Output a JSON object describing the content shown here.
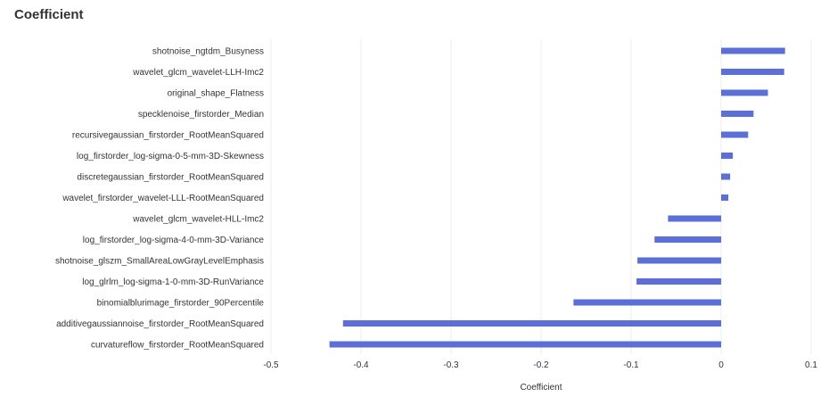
{
  "header": {
    "title": "Coefficient"
  },
  "chart_data": {
    "type": "bar",
    "orientation": "horizontal",
    "title": "Coefficient",
    "xlabel": "Coefficient",
    "ylabel": "",
    "xlim": [
      -0.5,
      0.1
    ],
    "xticks": [
      -0.5,
      -0.4,
      -0.3,
      -0.2,
      -0.1,
      0,
      0.1
    ],
    "xtick_labels": [
      "-0.5",
      "-0.4",
      "-0.3",
      "-0.2",
      "-0.1",
      "0",
      "0.1"
    ],
    "grid": true,
    "bar_color": "#5b6fd6",
    "categories": [
      "shotnoise_ngtdm_Busyness",
      "wavelet_glcm_wavelet-LLH-Imc2",
      "original_shape_Flatness",
      "specklenoise_firstorder_Median",
      "recursivegaussian_firstorder_RootMeanSquared",
      "log_firstorder_log-sigma-0-5-mm-3D-Skewness",
      "discretegaussian_firstorder_RootMeanSquared",
      "wavelet_firstorder_wavelet-LLL-RootMeanSquared",
      "wavelet_glcm_wavelet-HLL-Imc2",
      "log_firstorder_log-sigma-4-0-mm-3D-Variance",
      "shotnoise_glszm_SmallAreaLowGrayLevelEmphasis",
      "log_glrlm_log-sigma-1-0-mm-3D-RunVariance",
      "binomialblurimage_firstorder_90Percentile",
      "additivegaussiannoise_firstorder_RootMeanSquared",
      "curvatureflow_firstorder_RootMeanSquared"
    ],
    "values": [
      0.071,
      0.07,
      0.052,
      0.036,
      0.03,
      0.013,
      0.01,
      0.008,
      -0.059,
      -0.074,
      -0.093,
      -0.094,
      -0.164,
      -0.42,
      -0.435
    ]
  }
}
